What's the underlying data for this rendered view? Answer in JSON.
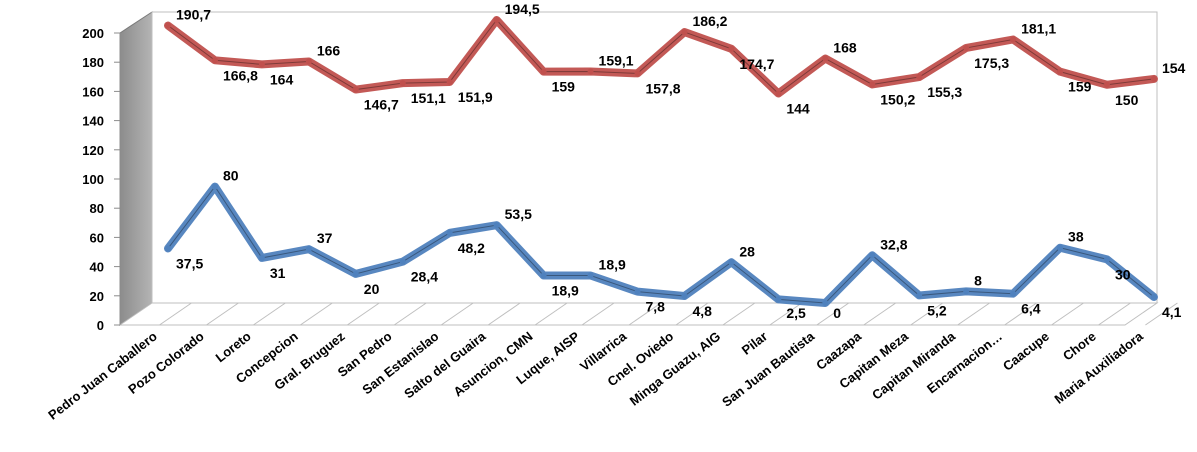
{
  "chart_data": {
    "type": "line",
    "title": "",
    "xlabel": "",
    "ylabel": "",
    "ylim": [
      0,
      200
    ],
    "yticks": [
      "0",
      "20",
      "40",
      "60",
      "80",
      "100",
      "120",
      "140",
      "160",
      "180",
      "200"
    ],
    "grid": false,
    "legend": "none",
    "categories": [
      "Pedro Juan Caballero",
      "Pozo Colorado",
      "Loreto",
      "Concepcion",
      "Gral. Bruguez",
      "San Pedro",
      "San Estanislao",
      "Salto del Guaira",
      "Asuncion, CMN",
      "Luque, AISP",
      "Villarrica",
      "Cnel. Oviedo",
      "Minga Guazu, AIG",
      "Pilar",
      "San Juan Bautista",
      "Caazapa",
      "Capitan Meza",
      "Capitan Miranda",
      "Encarnacion…",
      "Caacupe",
      "Chore",
      "Maria Auxiliadora"
    ],
    "series": [
      {
        "color": "#c0504d",
        "values": [
          190.7,
          166.8,
          164,
          166,
          146.7,
          151.1,
          151.9,
          194.5,
          159,
          159.1,
          157.8,
          186.2,
          174.7,
          144,
          168,
          150.2,
          155.3,
          175.3,
          181.1,
          159,
          150,
          154
        ],
        "labels": [
          "190,7",
          "166,8",
          "164",
          "166",
          "146,7",
          "151,1",
          "151,9",
          "194,5",
          "159",
          "159,1",
          "157,8",
          "186,2",
          "174,7",
          "144",
          "168",
          "150,2",
          "155,3",
          "175,3",
          "181,1",
          "159",
          "150",
          "154"
        ]
      },
      {
        "color": "#4f81bd",
        "values": [
          37.5,
          80,
          31,
          37,
          20,
          28.4,
          48.2,
          53.5,
          18.9,
          18.9,
          7.8,
          4.8,
          28,
          2.5,
          0,
          32.8,
          5.2,
          8,
          6.4,
          38,
          30,
          4.1
        ],
        "labels": [
          "37,5",
          "80",
          "31",
          "37",
          "20",
          "28,4",
          "48,2",
          "53,5",
          "18,9",
          "18,9",
          "7,8",
          "4,8",
          "28",
          "2,5",
          "0",
          "32,8",
          "5,2",
          "8",
          "6,4",
          "38",
          "30",
          "4,1"
        ]
      }
    ]
  }
}
